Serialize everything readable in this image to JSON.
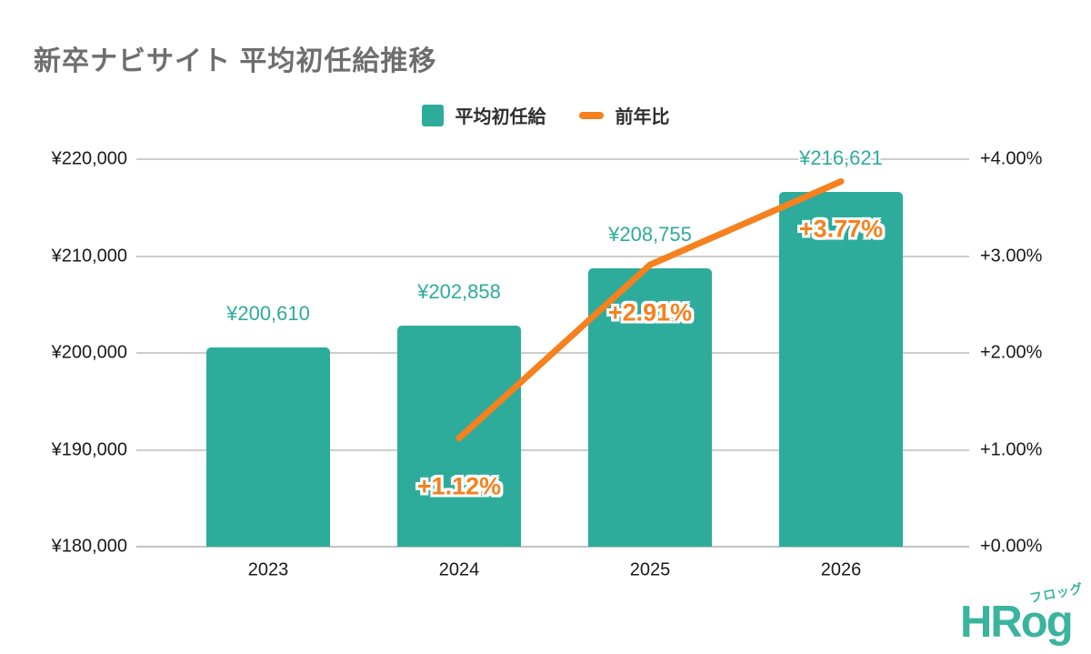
{
  "title": "新卒ナビサイト 平均初任給推移",
  "legend": [
    {
      "label": "平均初任給",
      "color": "#2dac9b",
      "swatch": "square"
    },
    {
      "label": "前年比",
      "color": "#f5811f",
      "swatch": "line"
    }
  ],
  "chart_data": {
    "type": "combo-bar-line",
    "categories": [
      "2023",
      "2024",
      "2025",
      "2026"
    ],
    "series": [
      {
        "name": "平均初任給",
        "type": "bar",
        "axis": "left",
        "color": "#2dac9b",
        "values": [
          200610,
          202858,
          208755,
          216621
        ],
        "data_labels": [
          "¥200,610",
          "¥202,858",
          "¥208,755",
          "¥216,621"
        ]
      },
      {
        "name": "前年比",
        "type": "line",
        "axis": "right",
        "color": "#f5811f",
        "values": [
          null,
          1.12,
          2.91,
          3.77
        ],
        "data_labels": [
          null,
          "+1.12%",
          "+2.91%",
          "+3.77%"
        ]
      }
    ],
    "left_axis": {
      "min": 180000,
      "max": 220000,
      "tick_labels": [
        "¥220,000",
        "¥210,000",
        "¥200,000",
        "¥190,000",
        "¥180,000"
      ]
    },
    "right_axis": {
      "min": 0,
      "max": 4,
      "tick_labels": [
        "+4.00%",
        "+3.00%",
        "+2.00%",
        "+1.00%",
        "+0.00%"
      ]
    },
    "grid": true,
    "legend_position": "top"
  },
  "colors": {
    "bar": "#2dac9b",
    "line": "#f5811f",
    "grid": "#cdcdcd",
    "axis_text": "#1a1a1a",
    "title_text": "#6e6e6e",
    "logo": "#3bb49e"
  },
  "logo": {
    "text": "HRog",
    "furigana": "フロッグ"
  }
}
